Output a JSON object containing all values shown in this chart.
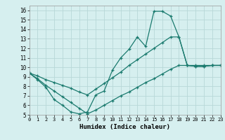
{
  "xlabel": "Humidex (Indice chaleur)",
  "xlim": [
    0,
    23
  ],
  "ylim": [
    5,
    16.5
  ],
  "bg_color": "#d6efef",
  "grid_color": "#b8d8d8",
  "line_color": "#1a7a6e",
  "line1_x": [
    0,
    1,
    2,
    3,
    4,
    5,
    6,
    7,
    8,
    9,
    10,
    11,
    12,
    13,
    14,
    15,
    16,
    17,
    18,
    19,
    20,
    21,
    22,
    23
  ],
  "line1_y": [
    9.4,
    8.7,
    7.9,
    6.6,
    6.0,
    5.3,
    5.1,
    5.3,
    7.1,
    7.5,
    9.7,
    11.0,
    11.9,
    13.2,
    12.2,
    15.9,
    15.9,
    15.4,
    13.2,
    10.2,
    10.1,
    10.1,
    10.2,
    10.2
  ],
  "line2_x": [
    0,
    1,
    2,
    3,
    4,
    5,
    6,
    7,
    8,
    9,
    10,
    11,
    12,
    13,
    14,
    15,
    16,
    17,
    18,
    19,
    20,
    21,
    22,
    23
  ],
  "line2_y": [
    9.4,
    8.8,
    8.1,
    7.5,
    6.9,
    6.3,
    5.7,
    5.1,
    5.5,
    6.0,
    6.5,
    7.0,
    7.4,
    7.9,
    8.4,
    8.8,
    9.3,
    9.8,
    10.2,
    10.2,
    10.2,
    10.2,
    10.2,
    10.2
  ],
  "line3_x": [
    0,
    1,
    2,
    3,
    4,
    5,
    6,
    7,
    8,
    9,
    10,
    11,
    12,
    13,
    14,
    15,
    16,
    17,
    18,
    19,
    20,
    21,
    22,
    23
  ],
  "line3_y": [
    9.4,
    9.1,
    8.7,
    8.4,
    8.1,
    7.8,
    7.4,
    7.1,
    7.7,
    8.3,
    8.9,
    9.5,
    10.2,
    10.8,
    11.4,
    12.0,
    12.6,
    13.2,
    13.2,
    10.2,
    10.1,
    10.1,
    10.2,
    10.2
  ]
}
